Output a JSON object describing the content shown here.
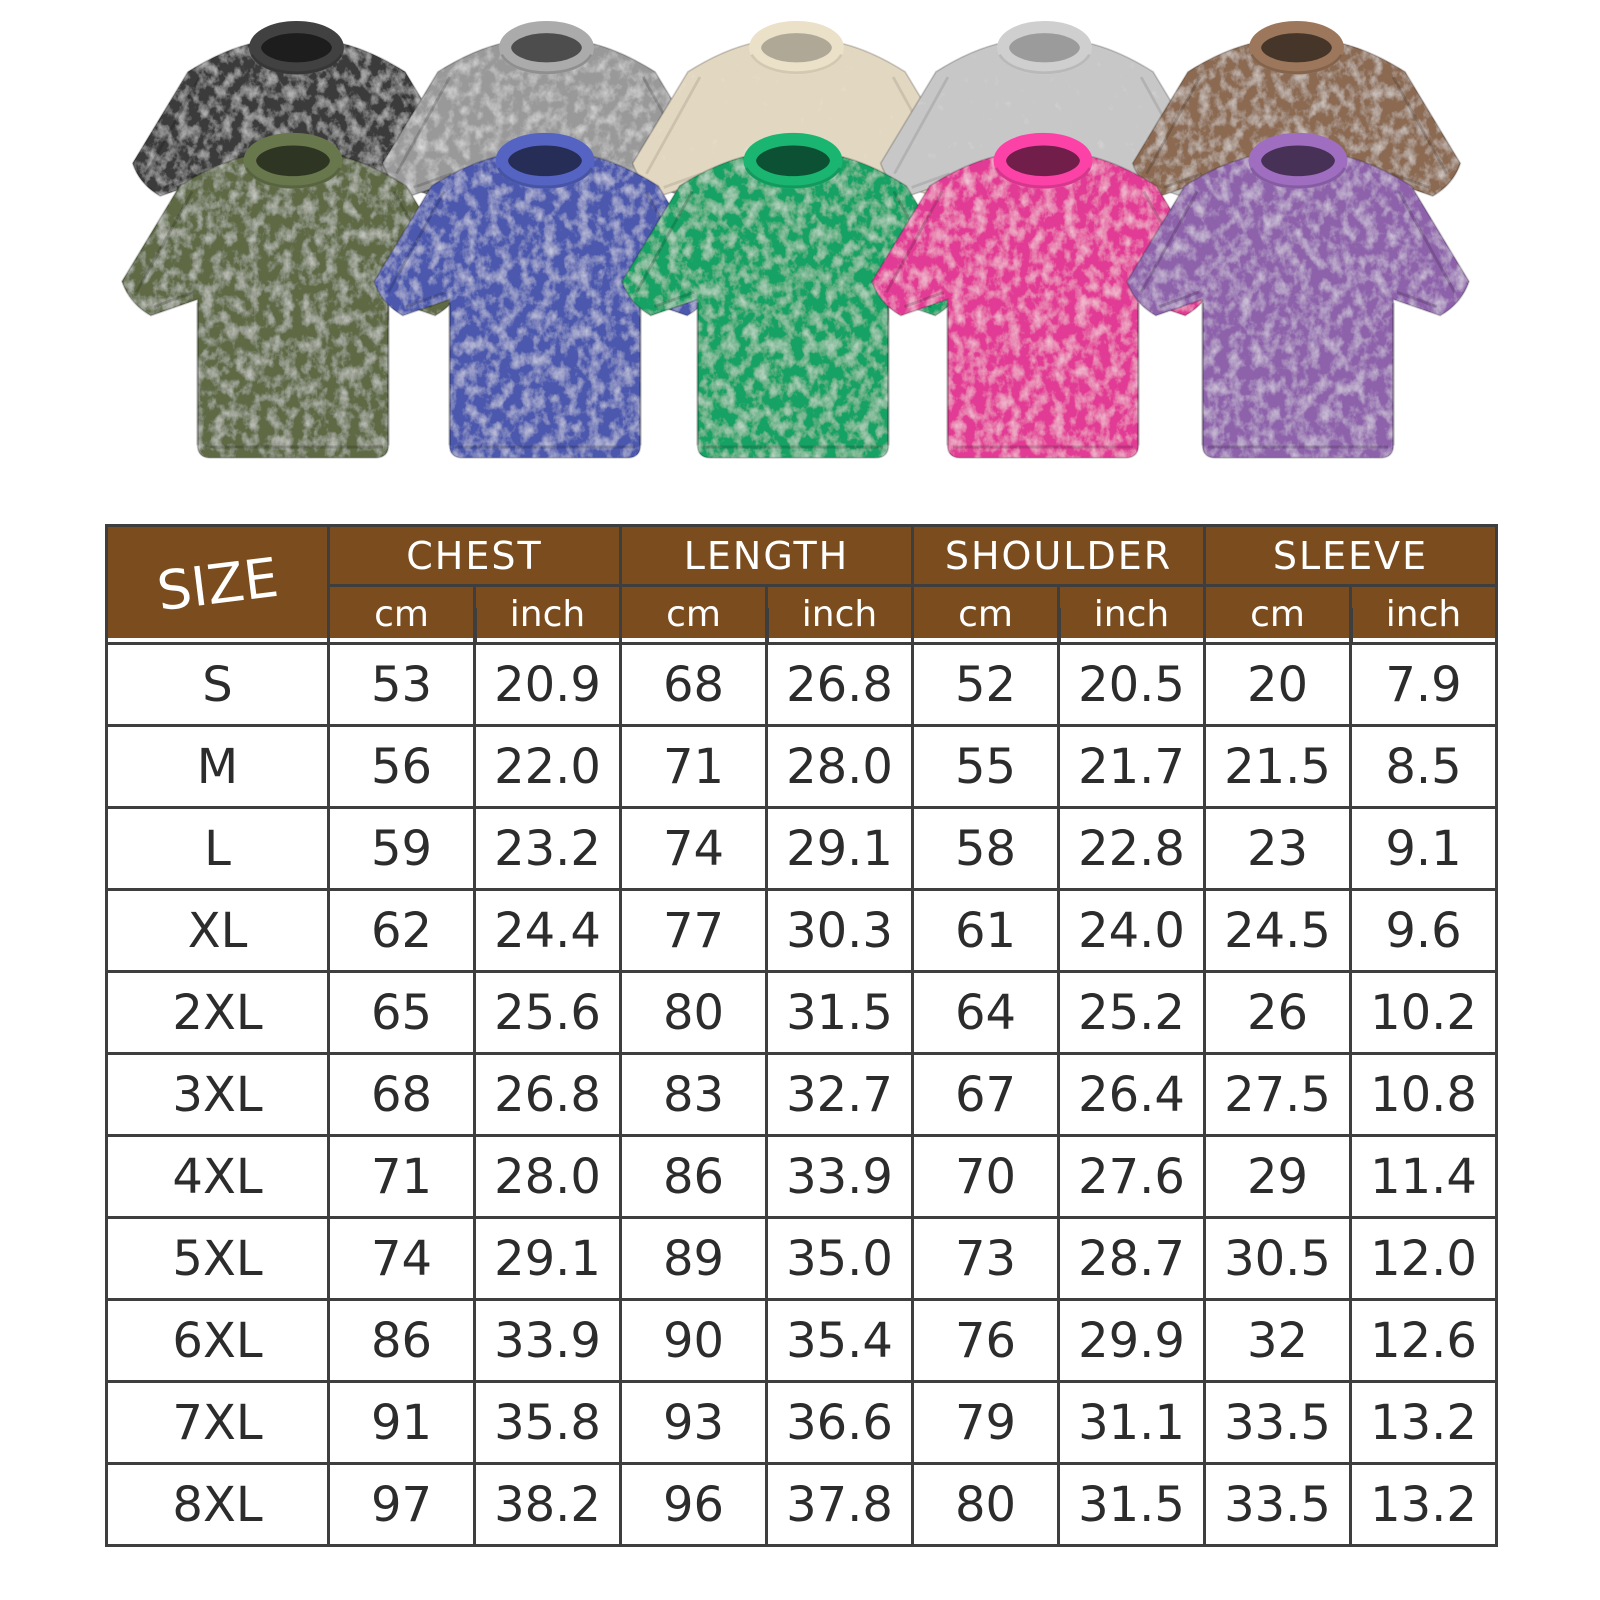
{
  "page": {
    "background": "#ffffff"
  },
  "product_gallery": {
    "description": "ten washed-cotton oversized crew-neck t-shirts, back row and front row",
    "shirts": [
      {
        "name": "washed-black",
        "color": "#3a3a3a",
        "row": "back"
      },
      {
        "name": "washed-grey",
        "color": "#999999",
        "row": "back"
      },
      {
        "name": "washed-beige",
        "color": "#e2d7c0",
        "row": "back"
      },
      {
        "name": "washed-silver-grey",
        "color": "#c7c7c7",
        "row": "back"
      },
      {
        "name": "washed-brown",
        "color": "#8b6a51",
        "row": "back"
      },
      {
        "name": "washed-army-green",
        "color": "#5e6a45",
        "row": "front"
      },
      {
        "name": "washed-blue",
        "color": "#4c59ae",
        "row": "front"
      },
      {
        "name": "washed-green",
        "color": "#17a265",
        "row": "front"
      },
      {
        "name": "washed-rose",
        "color": "#e23b95",
        "row": "front"
      },
      {
        "name": "washed-purple",
        "color": "#8e62ab",
        "row": "front"
      }
    ]
  },
  "size_chart": {
    "header_bg": "#7b4c1e",
    "border_color": "#3e3e3e",
    "text_color": "#2c2c2c",
    "size_label": "SIZE",
    "groups": [
      {
        "label": "CHEST",
        "sub": [
          "cm",
          "inch"
        ]
      },
      {
        "label": "LENGTH",
        "sub": [
          "cm",
          "inch"
        ]
      },
      {
        "label": "SHOULDER",
        "sub": [
          "cm",
          "inch"
        ]
      },
      {
        "label": "SLEEVE",
        "sub": [
          "cm",
          "inch"
        ]
      }
    ],
    "rows": [
      {
        "size": "S",
        "values": [
          "53",
          "20.9",
          "68",
          "26.8",
          "52",
          "20.5",
          "20",
          "7.9"
        ]
      },
      {
        "size": "M",
        "values": [
          "56",
          "22.0",
          "71",
          "28.0",
          "55",
          "21.7",
          "21.5",
          "8.5"
        ]
      },
      {
        "size": "L",
        "values": [
          "59",
          "23.2",
          "74",
          "29.1",
          "58",
          "22.8",
          "23",
          "9.1"
        ]
      },
      {
        "size": "XL",
        "values": [
          "62",
          "24.4",
          "77",
          "30.3",
          "61",
          "24.0",
          "24.5",
          "9.6"
        ]
      },
      {
        "size": "2XL",
        "values": [
          "65",
          "25.6",
          "80",
          "31.5",
          "64",
          "25.2",
          "26",
          "10.2"
        ]
      },
      {
        "size": "3XL",
        "values": [
          "68",
          "26.8",
          "83",
          "32.7",
          "67",
          "26.4",
          "27.5",
          "10.8"
        ]
      },
      {
        "size": "4XL",
        "values": [
          "71",
          "28.0",
          "86",
          "33.9",
          "70",
          "27.6",
          "29",
          "11.4"
        ]
      },
      {
        "size": "5XL",
        "values": [
          "74",
          "29.1",
          "89",
          "35.0",
          "73",
          "28.7",
          "30.5",
          "12.0"
        ]
      },
      {
        "size": "6XL",
        "values": [
          "86",
          "33.9",
          "90",
          "35.4",
          "76",
          "29.9",
          "32",
          "12.6"
        ]
      },
      {
        "size": "7XL",
        "values": [
          "91",
          "35.8",
          "93",
          "36.6",
          "79",
          "31.1",
          "33.5",
          "13.2"
        ]
      },
      {
        "size": "8XL",
        "values": [
          "97",
          "38.2",
          "96",
          "37.8",
          "80",
          "31.5",
          "33.5",
          "13.2"
        ]
      }
    ]
  }
}
